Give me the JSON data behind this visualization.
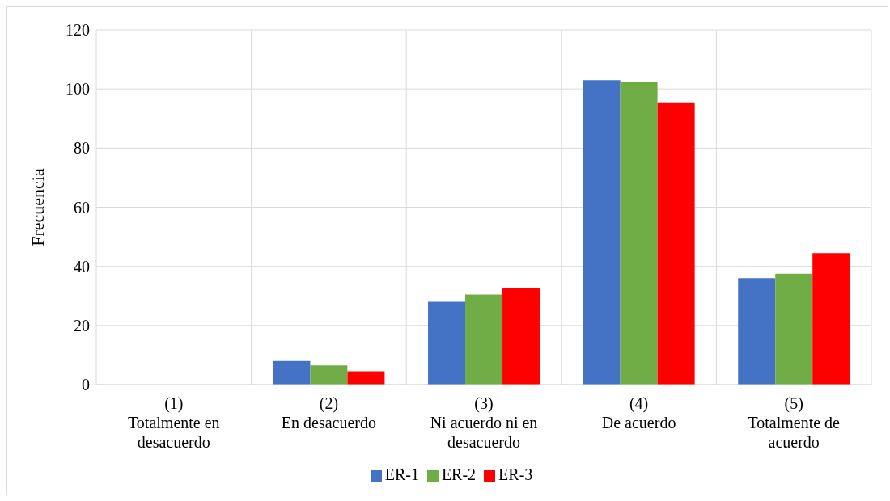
{
  "chart_data": {
    "type": "bar",
    "ylabel": "Frecuencia",
    "categories": [
      "(1)\nTotalmente en\ndesacuerdo",
      "(2)\nEn desacuerdo",
      "(3)\nNi acuerdo ni en\ndesacuerdo",
      "(4)\nDe acuerdo",
      "(5)\nTotalmente de\nacuerdo"
    ],
    "series": [
      {
        "name": "ER-1",
        "color": "#4472c4",
        "values": [
          0,
          8,
          28,
          103,
          36
        ]
      },
      {
        "name": "ER-2",
        "color": "#70ad47",
        "values": [
          0,
          6.5,
          30.5,
          102.5,
          37.5
        ]
      },
      {
        "name": "ER-3",
        "color": "#ff0000",
        "values": [
          0,
          4.5,
          32.5,
          95.5,
          44.5
        ]
      }
    ],
    "ylim": [
      0,
      120
    ],
    "yticks": [
      0,
      20,
      40,
      60,
      80,
      100,
      120
    ],
    "grid": true,
    "legend": "bottom"
  }
}
